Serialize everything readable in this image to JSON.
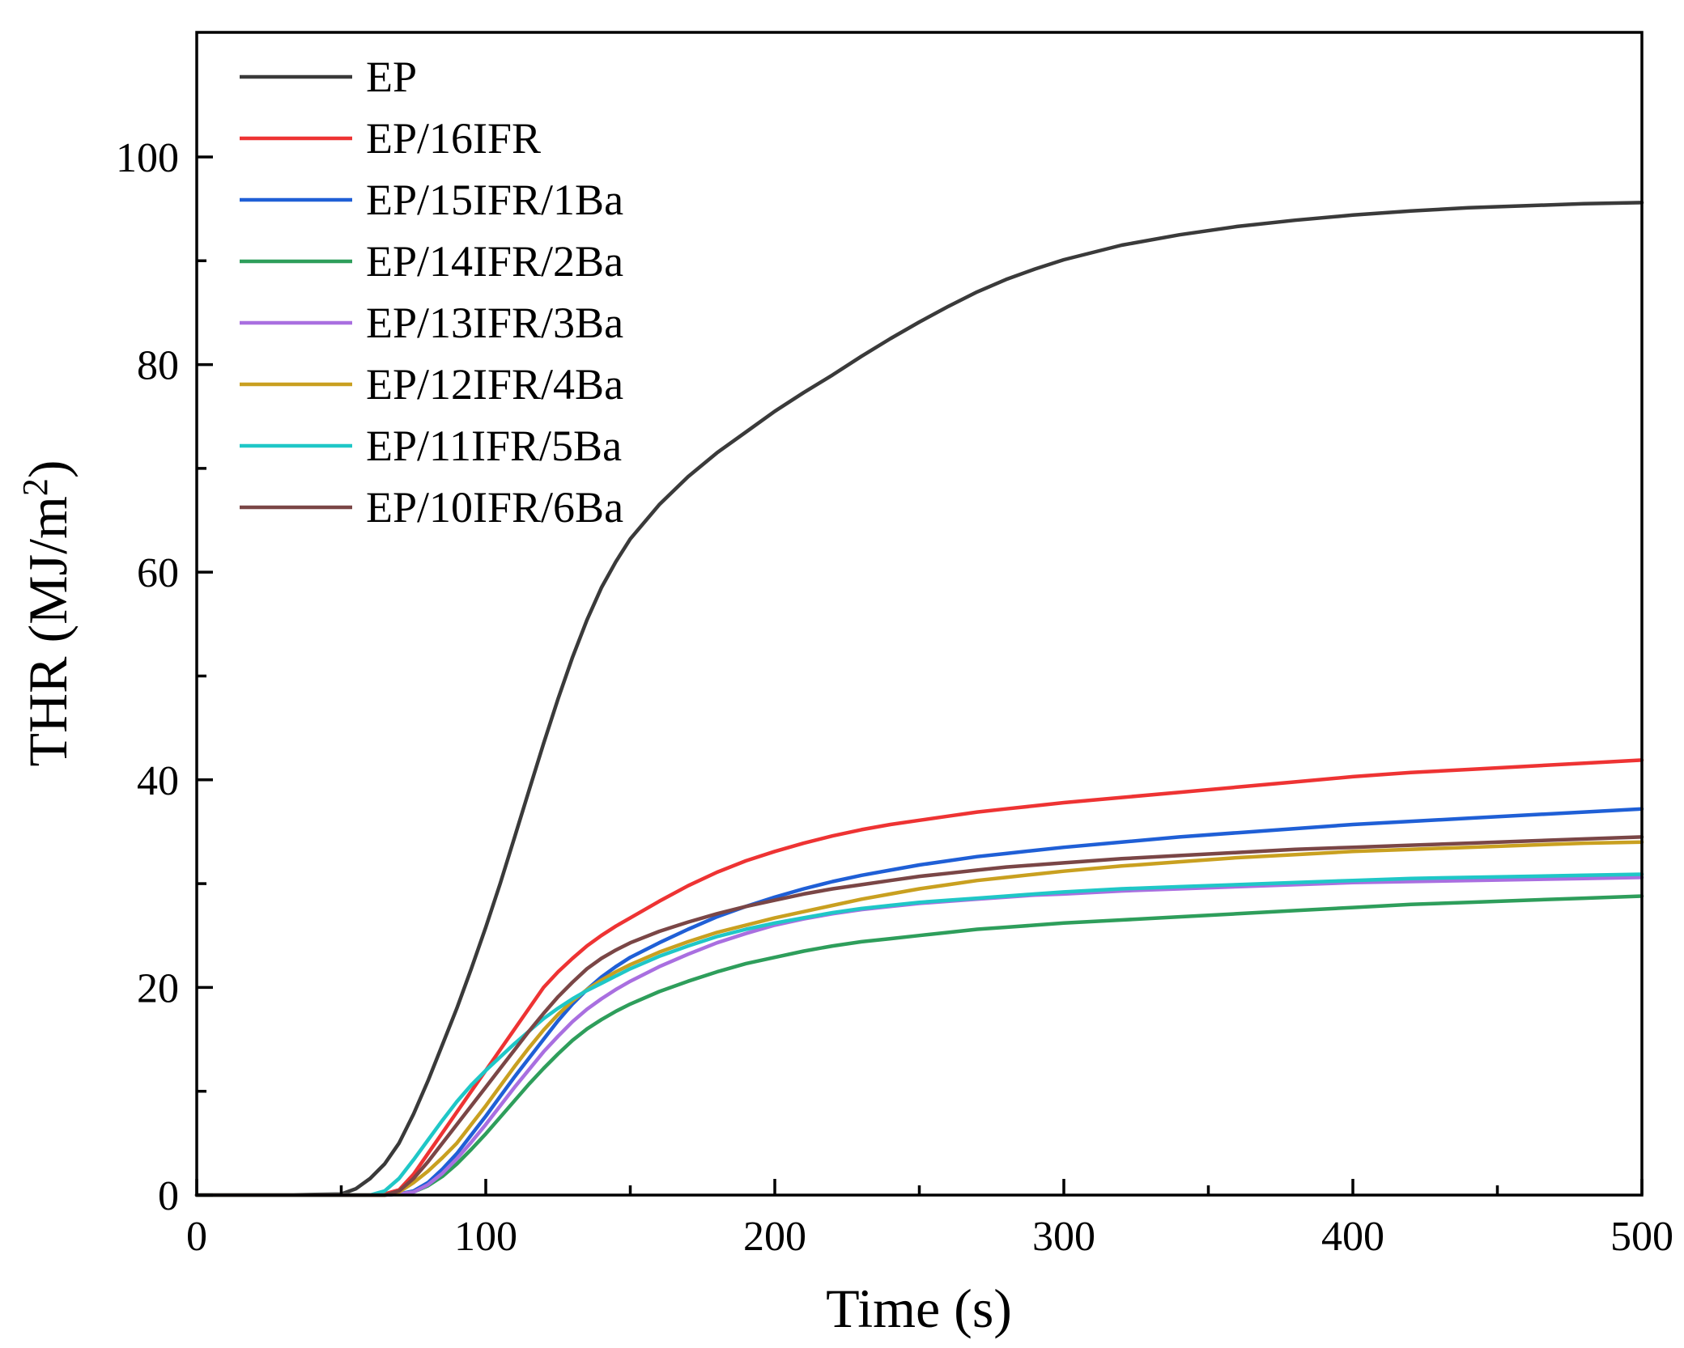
{
  "chart_data": {
    "type": "line",
    "title": "",
    "xlabel": "Time (s)",
    "ylabel": "THR (MJ/m",
    "ylabel_superscript": "2",
    "ylabel_suffix": ")",
    "xlim": [
      0,
      500
    ],
    "ylim": [
      0,
      112
    ],
    "x_ticks": [
      0,
      100,
      200,
      300,
      400,
      500
    ],
    "y_ticks": [
      0,
      20,
      40,
      60,
      80,
      100
    ],
    "x_minor_ticks": [
      50,
      150,
      250,
      350,
      450
    ],
    "y_minor_ticks": [
      10,
      30,
      50,
      70,
      90
    ],
    "legend_position": "top-left",
    "grid": false,
    "x": [
      0,
      30,
      50,
      55,
      60,
      65,
      70,
      75,
      80,
      85,
      90,
      95,
      100,
      105,
      110,
      115,
      120,
      125,
      130,
      135,
      140,
      145,
      150,
      160,
      170,
      180,
      190,
      200,
      210,
      220,
      230,
      240,
      250,
      260,
      270,
      280,
      290,
      300,
      320,
      340,
      360,
      380,
      400,
      420,
      440,
      460,
      480,
      500
    ],
    "series": [
      {
        "name": "EP",
        "color": "#3a3a3a",
        "values": [
          0,
          0,
          0.1,
          0.6,
          1.6,
          3.0,
          5.0,
          7.8,
          11.0,
          14.5,
          18.0,
          21.8,
          25.8,
          30.0,
          34.5,
          39.0,
          43.5,
          47.8,
          51.8,
          55.4,
          58.5,
          61.0,
          63.2,
          66.5,
          69.2,
          71.5,
          73.5,
          75.5,
          77.3,
          79.0,
          80.8,
          82.5,
          84.1,
          85.6,
          87.0,
          88.2,
          89.2,
          90.1,
          91.5,
          92.5,
          93.3,
          93.9,
          94.4,
          94.8,
          95.1,
          95.3,
          95.5,
          95.6
        ]
      },
      {
        "name": "EP/16IFR",
        "color": "#ee3333",
        "values": [
          0,
          0,
          0,
          0,
          0,
          0.1,
          0.5,
          2.0,
          4.0,
          6.0,
          8.0,
          10.0,
          12.0,
          14.0,
          16.0,
          18.0,
          20.0,
          21.5,
          22.8,
          24.0,
          25.0,
          25.9,
          26.7,
          28.3,
          29.8,
          31.1,
          32.2,
          33.1,
          33.9,
          34.6,
          35.2,
          35.7,
          36.1,
          36.5,
          36.9,
          37.2,
          37.5,
          37.8,
          38.3,
          38.8,
          39.3,
          39.8,
          40.3,
          40.7,
          41.0,
          41.3,
          41.6,
          41.9
        ]
      },
      {
        "name": "EP/15IFR/1Ba",
        "color": "#1f5fd6",
        "values": [
          0,
          0,
          0,
          0,
          0,
          0,
          0.1,
          0.4,
          1.2,
          2.5,
          4.0,
          5.8,
          7.6,
          9.5,
          11.4,
          13.2,
          15.0,
          16.8,
          18.4,
          19.8,
          21.0,
          22.0,
          22.9,
          24.3,
          25.6,
          26.8,
          27.8,
          28.7,
          29.5,
          30.2,
          30.8,
          31.3,
          31.8,
          32.2,
          32.6,
          32.9,
          33.2,
          33.5,
          34.0,
          34.5,
          34.9,
          35.3,
          35.7,
          36.0,
          36.3,
          36.6,
          36.9,
          37.2
        ]
      },
      {
        "name": "EP/14IFR/2Ba",
        "color": "#2e9e5b",
        "values": [
          0,
          0,
          0,
          0,
          0,
          0,
          0.1,
          0.3,
          0.9,
          1.8,
          3.0,
          4.4,
          5.9,
          7.5,
          9.1,
          10.7,
          12.2,
          13.6,
          14.9,
          16.0,
          16.9,
          17.7,
          18.4,
          19.6,
          20.6,
          21.5,
          22.3,
          22.9,
          23.5,
          24.0,
          24.4,
          24.7,
          25.0,
          25.3,
          25.6,
          25.8,
          26.0,
          26.2,
          26.5,
          26.8,
          27.1,
          27.4,
          27.7,
          28.0,
          28.2,
          28.4,
          28.6,
          28.8
        ]
      },
      {
        "name": "EP/13IFR/3Ba",
        "color": "#a96fe0",
        "values": [
          0,
          0,
          0,
          0,
          0,
          0,
          0.1,
          0.3,
          1.0,
          2.1,
          3.5,
          5.1,
          6.8,
          8.6,
          10.4,
          12.1,
          13.8,
          15.3,
          16.7,
          17.9,
          18.9,
          19.8,
          20.6,
          22.0,
          23.2,
          24.3,
          25.2,
          26.0,
          26.6,
          27.1,
          27.5,
          27.8,
          28.1,
          28.3,
          28.5,
          28.7,
          28.9,
          29.0,
          29.3,
          29.5,
          29.7,
          29.9,
          30.1,
          30.2,
          30.3,
          30.4,
          30.5,
          30.6
        ]
      },
      {
        "name": "EP/12IFR/4Ba",
        "color": "#c9a020",
        "values": [
          0,
          0,
          0,
          0,
          0,
          0,
          0.3,
          1.2,
          2.3,
          3.6,
          5.0,
          6.8,
          8.6,
          10.5,
          12.4,
          14.2,
          15.9,
          17.4,
          18.7,
          19.8,
          20.7,
          21.5,
          22.2,
          23.4,
          24.4,
          25.3,
          26.0,
          26.7,
          27.3,
          27.9,
          28.5,
          29.0,
          29.5,
          29.9,
          30.3,
          30.6,
          30.9,
          31.2,
          31.7,
          32.1,
          32.5,
          32.8,
          33.1,
          33.3,
          33.5,
          33.7,
          33.9,
          34.0
        ]
      },
      {
        "name": "EP/11IFR/5Ba",
        "color": "#1fc7c7",
        "values": [
          0,
          0,
          0,
          0,
          0,
          0.4,
          1.6,
          3.4,
          5.3,
          7.2,
          9.0,
          10.6,
          12.0,
          13.3,
          14.6,
          15.8,
          17.0,
          18.0,
          18.9,
          19.7,
          20.4,
          21.1,
          21.8,
          23.0,
          24.0,
          24.9,
          25.6,
          26.2,
          26.7,
          27.2,
          27.6,
          27.9,
          28.2,
          28.4,
          28.6,
          28.8,
          29.0,
          29.2,
          29.5,
          29.7,
          29.9,
          30.1,
          30.3,
          30.5,
          30.6,
          30.7,
          30.8,
          30.9
        ]
      },
      {
        "name": "EP/10IFR/6Ba",
        "color": "#7a4646",
        "values": [
          0,
          0,
          0,
          0,
          0,
          0,
          0.4,
          1.6,
          3.2,
          5.0,
          6.8,
          8.6,
          10.4,
          12.2,
          14.0,
          15.8,
          17.5,
          19.1,
          20.5,
          21.8,
          22.8,
          23.6,
          24.3,
          25.4,
          26.3,
          27.1,
          27.8,
          28.4,
          29.0,
          29.5,
          29.9,
          30.3,
          30.7,
          31.0,
          31.3,
          31.6,
          31.8,
          32.0,
          32.4,
          32.7,
          33.0,
          33.3,
          33.5,
          33.7,
          33.9,
          34.1,
          34.3,
          34.5
        ]
      }
    ]
  }
}
